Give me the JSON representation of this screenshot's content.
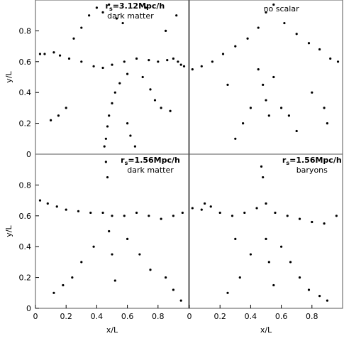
{
  "chart_data": [
    {
      "type": "scatter",
      "ylabel": "y/L",
      "annotation": {
        "r": "r",
        "sub": "s",
        "text": "=3.12Mpc/h",
        "note": "dark matter"
      },
      "x": [
        0.03,
        0.06,
        0.12,
        0.16,
        0.22,
        0.3,
        0.38,
        0.44,
        0.5,
        0.58,
        0.66,
        0.74,
        0.8,
        0.86,
        0.9,
        0.93,
        0.95,
        0.97,
        0.45,
        0.46,
        0.47,
        0.48,
        0.5,
        0.52,
        0.55,
        0.6,
        0.4,
        0.35,
        0.3,
        0.25,
        0.7,
        0.75,
        0.78,
        0.82,
        0.88,
        0.6,
        0.62,
        0.65,
        0.2,
        0.15,
        0.1,
        0.44,
        0.48,
        0.53,
        0.57,
        0.72,
        0.85,
        0.92
      ],
      "y": [
        0.65,
        0.65,
        0.66,
        0.64,
        0.62,
        0.6,
        0.57,
        0.56,
        0.58,
        0.6,
        0.62,
        0.61,
        0.6,
        0.61,
        0.62,
        0.6,
        0.58,
        0.57,
        0.05,
        0.1,
        0.18,
        0.25,
        0.33,
        0.4,
        0.46,
        0.52,
        0.95,
        0.9,
        0.82,
        0.75,
        0.5,
        0.42,
        0.35,
        0.3,
        0.28,
        0.2,
        0.12,
        0.05,
        0.3,
        0.25,
        0.22,
        0.92,
        0.97,
        0.88,
        0.85,
        0.95,
        0.8,
        0.9
      ],
      "xlim": [
        0,
        1
      ],
      "ylim": [
        0,
        1
      ],
      "yticks": [
        0,
        0.2,
        0.4,
        0.6,
        0.8
      ],
      "color": "#000000"
    },
    {
      "type": "scatter",
      "annotation": {
        "note": "no scalar"
      },
      "x": [
        0.02,
        0.08,
        0.15,
        0.22,
        0.3,
        0.38,
        0.45,
        0.5,
        0.55,
        0.62,
        0.7,
        0.78,
        0.85,
        0.92,
        0.97,
        0.48,
        0.5,
        0.52,
        0.4,
        0.35,
        0.3,
        0.6,
        0.65,
        0.7,
        0.55,
        0.45,
        0.25,
        0.8,
        0.88,
        0.9
      ],
      "y": [
        0.55,
        0.57,
        0.6,
        0.65,
        0.7,
        0.75,
        0.82,
        0.92,
        0.97,
        0.85,
        0.78,
        0.72,
        0.68,
        0.62,
        0.6,
        0.45,
        0.35,
        0.25,
        0.3,
        0.2,
        0.1,
        0.3,
        0.25,
        0.15,
        0.5,
        0.55,
        0.45,
        0.4,
        0.3,
        0.2
      ],
      "xlim": [
        0,
        1
      ],
      "ylim": [
        0,
        1
      ],
      "color": "#000000"
    },
    {
      "type": "scatter",
      "ylabel": "y/L",
      "xlabel": "x/L",
      "annotation": {
        "r": "r",
        "sub": "s",
        "text": "=1.56Mpc/h",
        "note": "dark matter"
      },
      "x": [
        0.03,
        0.08,
        0.14,
        0.2,
        0.28,
        0.36,
        0.44,
        0.5,
        0.58,
        0.66,
        0.74,
        0.82,
        0.9,
        0.96,
        0.46,
        0.47,
        0.48,
        0.5,
        0.52,
        0.38,
        0.3,
        0.24,
        0.18,
        0.12,
        0.6,
        0.68,
        0.75,
        0.85,
        0.9,
        0.95
      ],
      "y": [
        0.7,
        0.68,
        0.66,
        0.64,
        0.63,
        0.62,
        0.62,
        0.6,
        0.6,
        0.62,
        0.6,
        0.58,
        0.6,
        0.62,
        0.95,
        0.85,
        0.5,
        0.35,
        0.18,
        0.4,
        0.3,
        0.2,
        0.15,
        0.1,
        0.45,
        0.35,
        0.25,
        0.2,
        0.12,
        0.05
      ],
      "xlim": [
        0,
        1
      ],
      "ylim": [
        0,
        1
      ],
      "xticks": [
        0,
        0.2,
        0.4,
        0.6,
        0.8
      ],
      "yticks": [
        0,
        0.2,
        0.4,
        0.6,
        0.8
      ],
      "color": "#000000"
    },
    {
      "type": "scatter",
      "xlabel": "x/L",
      "annotation": {
        "r": "r",
        "sub": "s",
        "text": "=1.56Mpc/h",
        "note": "baryons"
      },
      "x": [
        0.02,
        0.08,
        0.1,
        0.14,
        0.2,
        0.28,
        0.36,
        0.44,
        0.5,
        0.56,
        0.64,
        0.72,
        0.8,
        0.88,
        0.96,
        0.47,
        0.48,
        0.5,
        0.52,
        0.4,
        0.33,
        0.25,
        0.6,
        0.66,
        0.72,
        0.78,
        0.85,
        0.9,
        0.55,
        0.3
      ],
      "y": [
        0.65,
        0.64,
        0.68,
        0.66,
        0.62,
        0.6,
        0.62,
        0.65,
        0.68,
        0.62,
        0.6,
        0.58,
        0.56,
        0.55,
        0.6,
        0.92,
        0.85,
        0.45,
        0.3,
        0.35,
        0.2,
        0.1,
        0.4,
        0.3,
        0.2,
        0.12,
        0.08,
        0.05,
        0.15,
        0.45
      ],
      "xlim": [
        0,
        1
      ],
      "ylim": [
        0,
        1
      ],
      "xticks": [
        0,
        0.2,
        0.4,
        0.6,
        0.8
      ],
      "color": "#000000"
    }
  ]
}
